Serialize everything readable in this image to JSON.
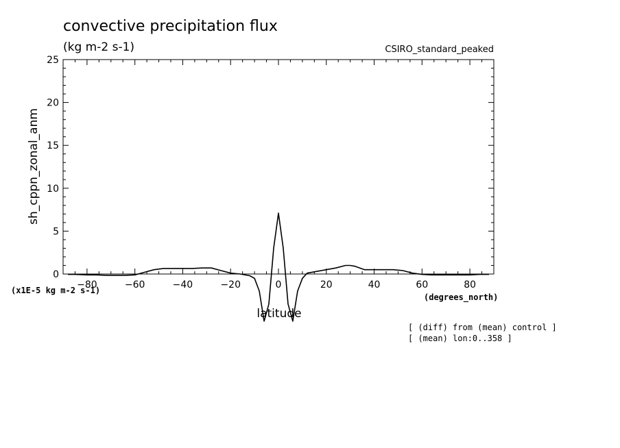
{
  "chart_data": {
    "type": "line",
    "title": "convective precipitation flux",
    "subtitle": "(kg m-2 s-1)",
    "model_label": "CSIRO_standard_peaked",
    "ylabel": "sh_cppn_zonal_anm",
    "y_scale_label": "(x1E-5 kg m-2 s-1)",
    "xlabel": "latitude",
    "x_unit_label": "(degrees_north)",
    "xlim": [
      -90,
      90
    ],
    "ylim": [
      0,
      25
    ],
    "x_ticks": [
      -80,
      -60,
      -40,
      -20,
      0,
      20,
      40,
      60,
      80
    ],
    "y_ticks": [
      0,
      5,
      10,
      15,
      20,
      25
    ],
    "notes": [
      "[ (diff) from (mean) control ]",
      "[ (mean) lon:0..358 ]"
    ],
    "series": [
      {
        "x": [
          -88,
          -85,
          -80,
          -76,
          -72,
          -68,
          -64,
          -60,
          -56,
          -52,
          -48,
          -44,
          -40,
          -36,
          -32,
          -28,
          -24,
          -20,
          -16,
          -12,
          -10,
          -8,
          -6,
          -4,
          -2,
          0,
          2,
          4,
          6,
          8,
          10,
          12,
          16,
          20,
          24,
          28,
          30,
          32,
          36,
          40,
          44,
          48,
          52,
          56,
          60,
          64,
          68,
          72,
          76,
          80,
          84,
          88
        ],
        "y": [
          -0.05,
          -0.05,
          -0.1,
          -0.1,
          -0.15,
          -0.15,
          -0.15,
          -0.1,
          0.2,
          0.5,
          0.65,
          0.65,
          0.65,
          0.65,
          0.7,
          0.7,
          0.4,
          0.1,
          0.0,
          -0.2,
          -0.5,
          -2.0,
          -5.5,
          -3.5,
          3.0,
          7.1,
          3.0,
          -3.5,
          -5.5,
          -2.0,
          -0.5,
          0.1,
          0.3,
          0.5,
          0.7,
          1.0,
          1.0,
          0.9,
          0.5,
          0.5,
          0.5,
          0.5,
          0.4,
          0.1,
          -0.05,
          -0.1,
          -0.1,
          -0.1,
          -0.1,
          -0.1,
          -0.05,
          -0.05
        ]
      }
    ]
  }
}
